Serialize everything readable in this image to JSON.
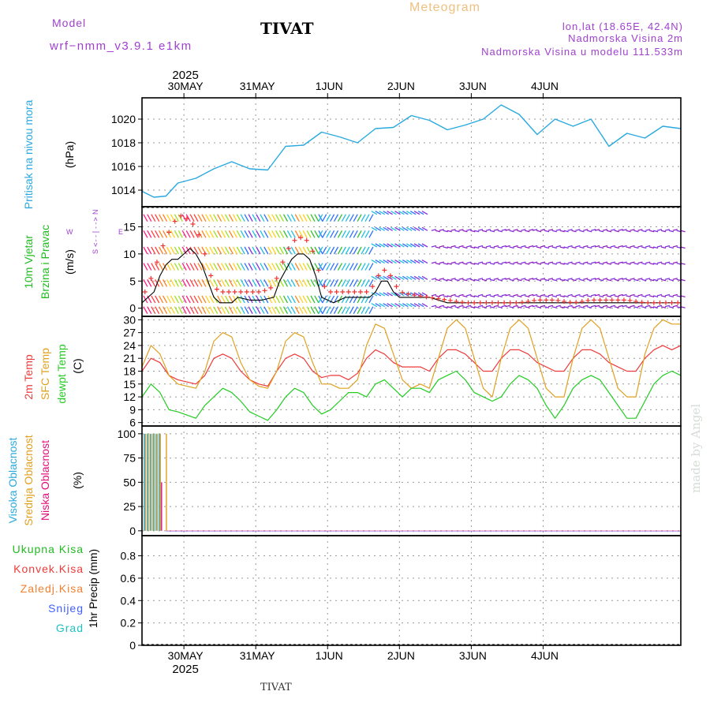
{
  "header": {
    "model_label": "Model",
    "model_name": "wrf−nmm_v3.9.1  e1km",
    "station": "TIVAT",
    "meteogram_label": "Meteogram",
    "lonlat": "lon,lat (18.65E, 42.4N)",
    "elevation": "Nadmorska Visina 2m",
    "model_elevation": "Nadmorska Visina u modelu 111.533m",
    "footer_station": "TIVAT",
    "watermark": "made by Angel"
  },
  "colors": {
    "pressure": "#29a9e0",
    "temp2m": "#ee3a3a",
    "sfc_temp": "#e0a020",
    "dewpt": "#22cc22",
    "wind_speed": "#000000",
    "gust": "#ee3333",
    "purple": "#a040d0",
    "magenta": "#e0107a",
    "green": "#22bb22",
    "orange": "#f08030",
    "blue": "#4060ff",
    "cyan": "#20c0c0"
  },
  "chart_data": [
    {
      "type": "line",
      "id": "pressure",
      "ylabel_parts": [
        "Pritisak na nivou mora",
        "(hPa)"
      ],
      "top_axis": {
        "year": "2025",
        "ticks": [
          "30MAY",
          "31MAY",
          "1JUN",
          "2JUN",
          "3JUN",
          "4JUN"
        ]
      },
      "yticks": [
        1014,
        1016,
        1018,
        1020
      ],
      "ylim": [
        1012.6,
        1021.8
      ],
      "x_hours": [
        0,
        4,
        8,
        12,
        18,
        24,
        30,
        36,
        42,
        48,
        54,
        60,
        66,
        72,
        78,
        84,
        90,
        96,
        102,
        108,
        114,
        120,
        126,
        132,
        138,
        144,
        150,
        156,
        162,
        168,
        174,
        180
      ],
      "series": [
        {
          "values": [
            1013.9,
            1013.4,
            1013.5,
            1014.6,
            1015.0,
            1015.8,
            1016.4,
            1015.8,
            1015.7,
            1017.7,
            1017.8,
            1018.9,
            1018.5,
            1018.0,
            1019.2,
            1019.3,
            1020.3,
            1019.9,
            1019.1,
            1019.5,
            1020.0,
            1021.2,
            1020.4,
            1018.7,
            1020.0,
            1019.4,
            1020.0,
            1017.7,
            1018.8,
            1018.4,
            1019.4,
            1019.2
          ]
        }
      ]
    },
    {
      "type": "line",
      "id": "wind",
      "ylabel_parts": [
        "10m Vjetar",
        "Brzina i Pravac",
        "(m/s)"
      ],
      "compass": [
        "N",
        "W",
        "E",
        "S"
      ],
      "yticks": [
        0,
        5,
        10,
        15
      ],
      "ylim": [
        -1.5,
        18.7
      ],
      "x_hours": [
        0,
        2,
        4,
        6,
        8,
        10,
        12,
        14,
        16,
        18,
        20,
        22,
        24,
        26,
        28,
        30,
        32,
        36,
        40,
        44,
        46,
        48,
        50,
        52,
        54,
        56,
        58,
        60,
        62,
        64,
        66,
        68,
        72,
        76,
        78,
        80,
        82,
        84,
        86,
        90,
        96,
        102,
        108,
        114,
        120,
        126,
        132,
        138,
        144,
        150,
        156,
        162,
        168,
        174,
        180
      ],
      "series": [
        {
          "values": [
            1,
            2,
            3,
            6,
            8,
            9,
            9,
            10,
            11,
            10,
            8,
            5,
            2,
            1,
            1,
            1,
            2,
            1.5,
            1.5,
            2,
            5,
            7,
            9,
            10,
            10,
            9,
            6,
            2,
            1.5,
            1,
            1.5,
            2,
            2,
            2,
            3,
            5,
            5,
            3,
            2,
            2,
            2,
            1,
            1,
            1,
            1,
            1,
            1,
            1,
            1,
            1,
            1,
            1,
            1,
            1,
            1
          ]
        },
        {
          "name_hidden": "gust",
          "values": [
            2,
            4,
            7,
            10,
            13,
            15,
            17,
            17,
            16,
            15,
            12,
            8,
            4,
            3,
            3,
            3,
            3,
            3,
            3,
            4,
            7,
            10,
            12,
            13,
            13,
            12,
            9,
            5,
            3,
            3,
            3,
            3,
            3,
            3,
            5,
            7,
            7,
            5,
            3,
            2.5,
            2,
            1.5,
            1,
            1,
            1,
            1,
            1.5,
            1.5,
            1,
            1.5,
            1.5,
            1.5,
            1,
            1,
            1
          ]
        }
      ]
    },
    {
      "type": "line",
      "id": "temperature",
      "ylabel_parts": [
        "2m Temp",
        "SFC Temp",
        "dewpt Temp",
        "(C)"
      ],
      "yticks": [
        6,
        9,
        12,
        15,
        18,
        21,
        24,
        27,
        30
      ],
      "ylim": [
        5.2,
        30.8
      ],
      "x_hours": [
        0,
        3,
        6,
        9,
        12,
        18,
        21,
        24,
        27,
        30,
        33,
        36,
        39,
        42,
        45,
        48,
        51,
        54,
        57,
        60,
        63,
        66,
        69,
        72,
        75,
        78,
        81,
        84,
        87,
        90,
        93,
        96,
        99,
        102,
        105,
        108,
        111,
        114,
        117,
        120,
        123,
        126,
        129,
        132,
        135,
        138,
        141,
        144,
        147,
        150,
        153,
        156,
        159,
        162,
        165,
        168,
        171,
        174,
        177,
        180
      ],
      "series": [
        {
          "name": "2m Temp",
          "values": [
            18,
            21,
            20,
            17,
            16,
            15,
            17,
            21,
            22,
            21,
            18,
            16,
            15,
            14.5,
            18,
            21,
            22,
            21,
            18,
            16.5,
            17,
            17,
            16,
            17.5,
            21,
            23,
            22,
            20,
            19,
            19,
            19,
            18,
            21,
            23,
            23,
            22,
            20,
            18,
            18,
            21,
            23,
            23,
            22,
            20,
            19,
            18,
            18,
            21,
            23,
            23,
            22,
            20,
            19,
            18,
            18,
            21,
            23,
            24,
            23,
            24
          ]
        },
        {
          "name": "SFC Temp",
          "values": [
            19,
            24,
            22,
            17,
            15,
            14,
            18,
            25,
            27,
            26,
            20,
            16,
            14.5,
            14,
            18,
            25,
            27,
            26,
            20,
            15,
            15,
            14,
            14,
            16,
            24,
            29,
            28,
            22,
            16,
            14,
            15,
            14,
            21,
            28,
            30,
            28,
            21,
            14,
            12,
            21,
            28,
            30,
            28,
            21,
            14,
            12,
            12,
            21,
            28,
            30,
            28,
            21,
            14,
            12,
            12,
            22,
            28,
            30,
            29,
            29
          ]
        },
        {
          "name": "dewpt Temp",
          "values": [
            12,
            15,
            13,
            9,
            8.5,
            7,
            10,
            12,
            14,
            13,
            11,
            8.5,
            7.5,
            6.5,
            9,
            12,
            14,
            13,
            10,
            8,
            9,
            11,
            13,
            13,
            12,
            15,
            16,
            14,
            12,
            14,
            14,
            13,
            16,
            17,
            18,
            16,
            13,
            12,
            11,
            12,
            15,
            17,
            16,
            14,
            10,
            7,
            10,
            14,
            16,
            17,
            16,
            13,
            10,
            7,
            7,
            11,
            15,
            17,
            18,
            17
          ]
        }
      ]
    },
    {
      "type": "bar",
      "id": "clouds",
      "ylabel_parts": [
        "Visoka Oblacnost",
        "Srednja Oblacnost",
        "Niska Oblacnost",
        "(%)"
      ],
      "yticks": [
        0,
        25,
        50,
        75,
        100
      ],
      "ylim": [
        -5,
        108
      ],
      "bars_x_hours": [
        1,
        2,
        3,
        4,
        5,
        6,
        7,
        8
      ],
      "series": [
        {
          "name": "Visoka Oblacnost",
          "values": [
            100,
            100,
            100,
            100,
            100,
            100,
            0,
            0
          ]
        },
        {
          "name": "Srednja Oblacnost",
          "values": [
            100,
            100,
            100,
            100,
            100,
            100,
            0,
            100
          ]
        },
        {
          "name": "Niska Oblacnost",
          "values": [
            0,
            0,
            0,
            0,
            0,
            50,
            0,
            0
          ]
        }
      ]
    },
    {
      "type": "bar",
      "id": "precip",
      "ylabel_parts": [
        "1hr Precip",
        "(mm)"
      ],
      "legend": [
        "Ukupna Kisa",
        "Konvek.Kisa",
        "Zaledj.Kisa",
        "Snijeg",
        "Grad"
      ],
      "yticks": [
        0,
        0.2,
        0.4,
        0.6,
        0.8
      ],
      "ylim": [
        0,
        0.98
      ],
      "bottom_axis": {
        "year": "2025",
        "ticks": [
          "30MAY",
          "31MAY",
          "1JUN",
          "2JUN",
          "3JUN",
          "4JUN"
        ]
      },
      "series": [
        {
          "name": "Ukupna Kisa",
          "values": [
            0
          ]
        }
      ]
    }
  ]
}
